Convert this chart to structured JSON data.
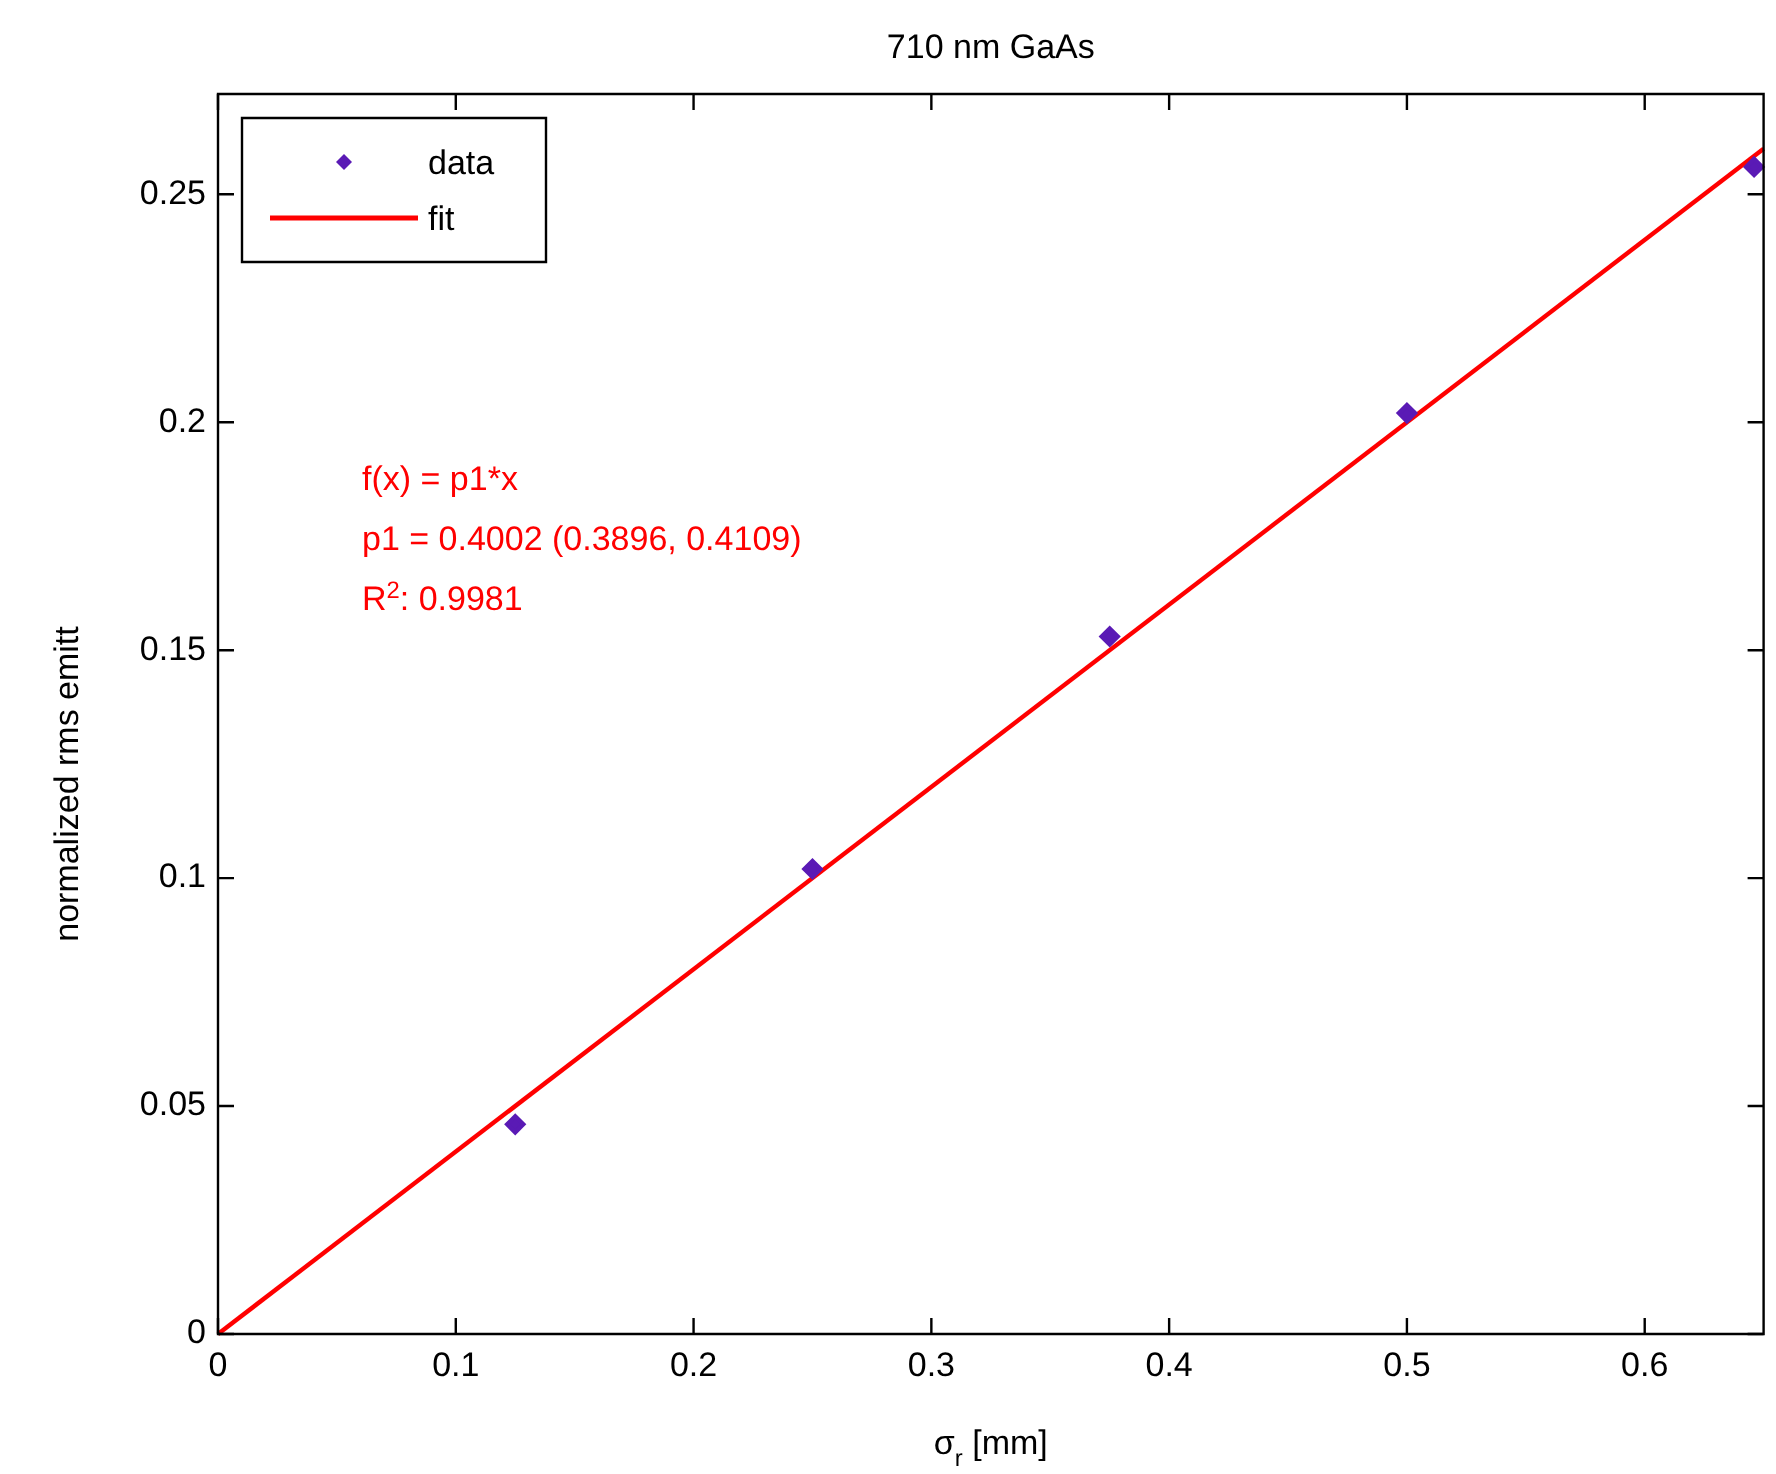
{
  "chart_data": {
    "type": "scatter",
    "title": "710 nm GaAs",
    "xlabel": "σ$_{r}$ [mm]",
    "ylabel": "normalized rms emitt",
    "xlim": [
      0,
      0.65
    ],
    "ylim": [
      0,
      0.272
    ],
    "xticks": [
      0,
      0.1,
      0.2,
      0.3,
      0.4,
      0.5,
      0.6
    ],
    "yticks": [
      0,
      0.05,
      0.1,
      0.15,
      0.2,
      0.25
    ],
    "grid": false,
    "legend": "top left",
    "annotations": [
      "f(x) = p1*x",
      "p1 = 0.4002 (0.3896, 0.4109)",
      "R$^{2}$: 0.9981"
    ],
    "series": [
      {
        "name": "data",
        "marker": "diamond",
        "color": "#5a1ab5",
        "x": [
          0.125,
          0.25,
          0.375,
          0.5,
          0.646
        ],
        "values": [
          0.046,
          0.102,
          0.153,
          0.202,
          0.256
        ]
      },
      {
        "name": "fit",
        "type": "line",
        "marker": "none",
        "color": "#ff0000",
        "x": [
          0,
          0.65
        ],
        "values": [
          0,
          0.26
        ]
      }
    ]
  }
}
